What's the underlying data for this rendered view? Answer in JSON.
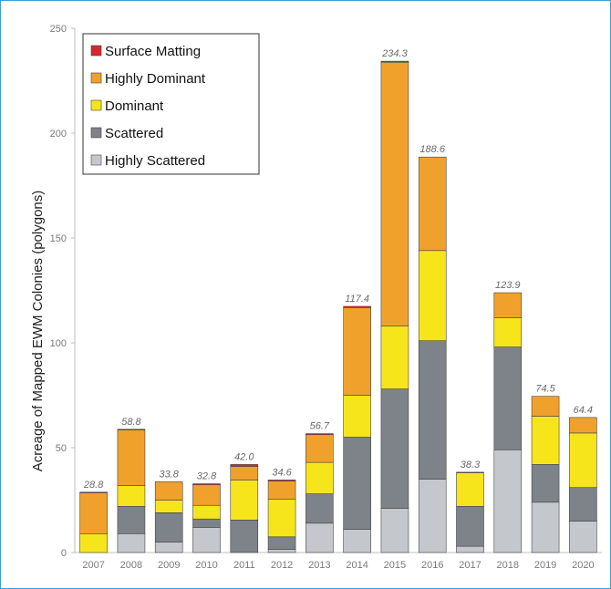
{
  "chart_data": {
    "type": "bar",
    "stacked": true,
    "title": "",
    "xlabel": "",
    "ylabel": "Acreage of Mapped EWM Colonies (polygons)",
    "ylim": [
      0,
      250
    ],
    "yticks": [
      "0",
      "50",
      "100",
      "150",
      "200",
      "250"
    ],
    "categories": [
      "2007",
      "2008",
      "2009",
      "2010",
      "2011",
      "2012",
      "2013",
      "2014",
      "2015",
      "2016",
      "2017",
      "2018",
      "2019",
      "2020"
    ],
    "totals": [
      "28.8",
      "58.8",
      "33.8",
      "32.8",
      "42.0",
      "34.6",
      "56.7",
      "117.4",
      "234.3",
      "188.6",
      "38.3",
      "123.9",
      "74.5",
      "64.4"
    ],
    "legend_position": "top-left",
    "grid": false,
    "series": [
      {
        "name": "Highly Scattered",
        "color": "#c4c8cc",
        "values": [
          0,
          9,
          5,
          12,
          0,
          1.5,
          14,
          11,
          21,
          35,
          3,
          49,
          24,
          15
        ]
      },
      {
        "name": "Scattered",
        "color": "#7d8388",
        "values": [
          0,
          13,
          14,
          4,
          15.5,
          6,
          14,
          44,
          57,
          66,
          19,
          49,
          18,
          16
        ]
      },
      {
        "name": "Dominant",
        "color": "#f7e51c",
        "values": [
          9,
          10,
          6,
          6.5,
          19,
          18,
          15,
          20,
          30,
          43,
          16,
          14,
          23,
          26
        ]
      },
      {
        "name": "Highly Dominant",
        "color": "#f0a12c",
        "values": [
          19.5,
          26.5,
          8.8,
          9.8,
          6.5,
          8.6,
          13.2,
          41.8,
          125.8,
          44.6,
          0.3,
          11.9,
          9.5,
          7.4
        ]
      },
      {
        "name": "Surface Matting",
        "color": "#d7282f",
        "values": [
          0.3,
          0.3,
          0,
          0.5,
          1,
          0.5,
          0.5,
          0.6,
          0.5,
          0,
          0,
          0,
          0,
          0
        ]
      }
    ],
    "legend_order": [
      "Surface Matting",
      "Highly Dominant",
      "Dominant",
      "Scattered",
      "Highly Scattered"
    ]
  }
}
